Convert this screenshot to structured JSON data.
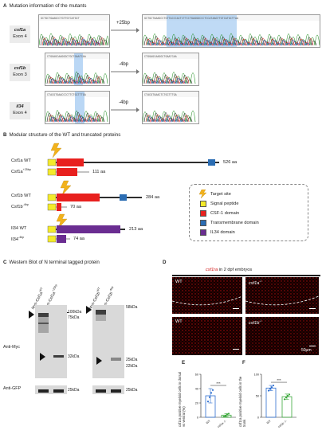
{
  "panel_a": {
    "letter": "A",
    "title": "Mutation information of the mutants",
    "rows": [
      {
        "gene": "csf1a",
        "exon": "Exon 4",
        "change": "+25bp"
      },
      {
        "gene": "csf1b",
        "exon": "Exon 3",
        "change": "-4bp"
      },
      {
        "gene": "il34",
        "exon": "Exon 4",
        "change": "-4bp"
      }
    ]
  },
  "panel_b": {
    "letter": "B",
    "title": "Modular structure of the WT and truncated proteins",
    "proteins": [
      {
        "name": "Csf1a WT",
        "sup": "",
        "aa": "526 aa"
      },
      {
        "name": "Csf1a",
        "sup": "+25bp",
        "aa": "111 aa"
      },
      {
        "name": "Csf1b WT",
        "sup": "",
        "aa": "284 aa"
      },
      {
        "name": "Csf1b",
        "sup": "-4bp",
        "aa": "70 aa"
      },
      {
        "name": "Il34 WT",
        "sup": "",
        "aa": "213 aa"
      },
      {
        "name": "Il34",
        "sup": "-4bp",
        "aa": "74 aa"
      }
    ],
    "legend": [
      {
        "label": "Target site",
        "color": "#f2b21c",
        "kind": "lightning"
      },
      {
        "label": "Signal peptide",
        "color": "#f4ea2a",
        "kind": "box"
      },
      {
        "label": "CSF-1 domain",
        "color": "#e8201e",
        "kind": "box"
      },
      {
        "label": "Transmembrane domain",
        "color": "#2b6db3",
        "kind": "box"
      },
      {
        "label": "IL34 domain",
        "color": "#6a2d91",
        "kind": "box"
      }
    ]
  },
  "panel_c": {
    "letter": "C",
    "title": "Western Blot of N terminal tagged protein",
    "lanes_left": [
      "Myc-Csf1a",
      "Myc-Csf1a"
    ],
    "lanes_left_sup": [
      "WT",
      "+25bp"
    ],
    "lanes_right": [
      "Myc-Csf1b",
      "Myc-Csf1b"
    ],
    "lanes_right_sup": [
      "WT",
      "-4bp"
    ],
    "markers_left": [
      "100kDa",
      "75kDa",
      "32kDa",
      "25kDa"
    ],
    "markers_right": [
      "58kDa",
      "25kDa",
      "22kDa",
      "25kDa"
    ],
    "anti_myc": "Anti-Myc",
    "anti_gfp": "Anti-GFP"
  },
  "panel_d": {
    "letter": "D",
    "title_gene": "csf1ra",
    "title_rest": " in 2 dpf embryos",
    "images": [
      "WT",
      "csf1a",
      "WT",
      "csf1b"
    ],
    "image_sup": [
      "",
      "-/-",
      "",
      "-/-"
    ],
    "scale": "50μm"
  },
  "panel_e": {
    "letter": "E",
    "ylabel": "csf1ra positive myeloid cells in dorsal vs ventral (%)",
    "xlabels": [
      "WT",
      "csf1a -/-"
    ],
    "sig": "***"
  },
  "panel_f": {
    "letter": "F",
    "ylabel": "csf1ra positive myeloid cells in the trunk",
    "xlabels": [
      "WT",
      "csf1b -/-"
    ],
    "sig": "***"
  },
  "chart_data": [
    {
      "type": "bar",
      "categories": [
        "WT",
        "csf1a -/-"
      ],
      "values": [
        30,
        3
      ],
      "errors": [
        10,
        2
      ],
      "points": [
        [
          22,
          28,
          34,
          38
        ],
        [
          1,
          2,
          4,
          5
        ]
      ],
      "colors": [
        "#2f6fd0",
        "#3aa83a"
      ],
      "ylim": [
        0,
        60
      ],
      "yticks": [
        0,
        20,
        40,
        60
      ],
      "significance": "***"
    },
    {
      "type": "bar",
      "categories": [
        "WT",
        "csf1b -/-"
      ],
      "values": [
        68,
        48
      ],
      "errors": [
        6,
        6
      ],
      "points": [
        [
          62,
          66,
          70,
          74
        ],
        [
          42,
          46,
          50,
          53
        ]
      ],
      "colors": [
        "#2f6fd0",
        "#3aa83a"
      ],
      "ylim": [
        0,
        100
      ],
      "yticks": [
        0,
        50,
        100
      ],
      "significance": "***"
    }
  ]
}
